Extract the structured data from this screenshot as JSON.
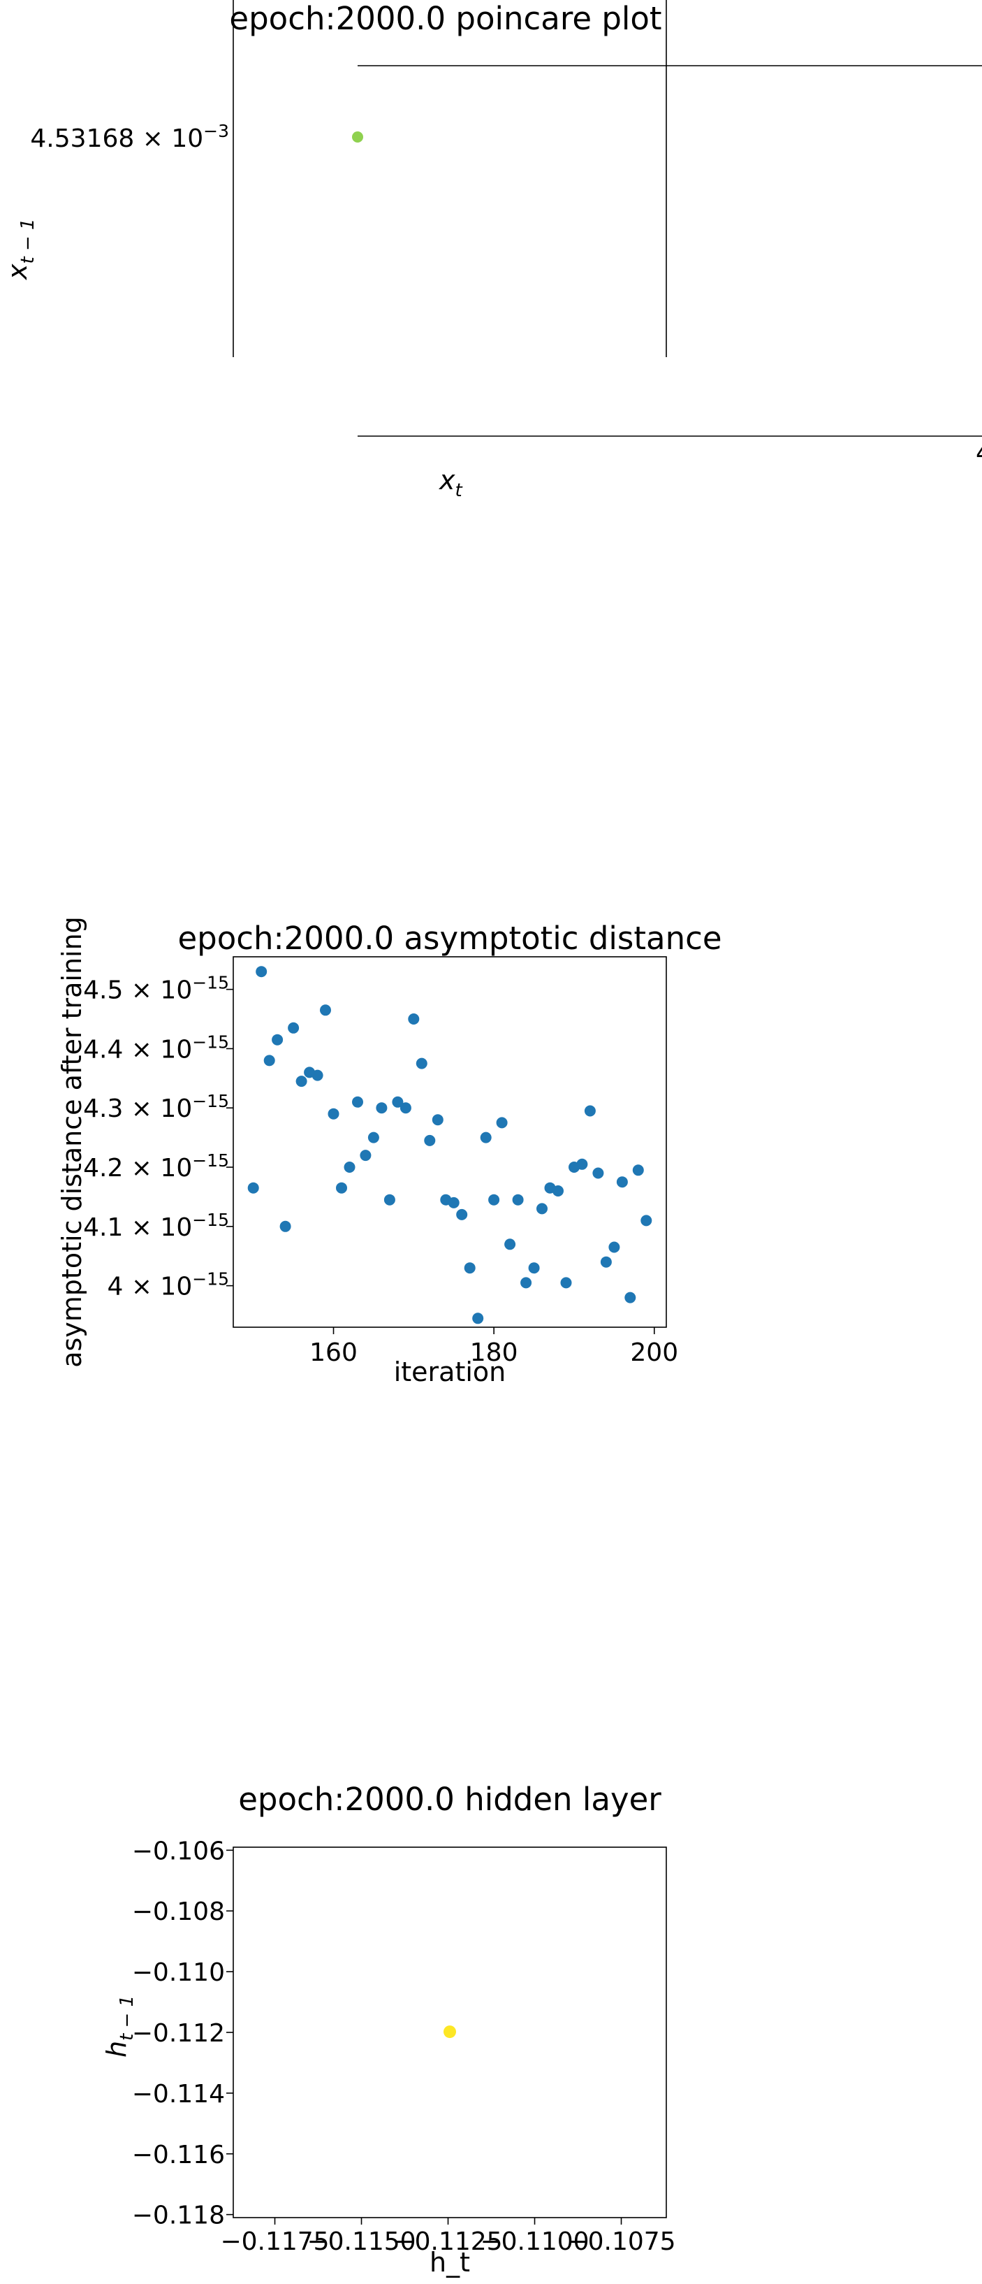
{
  "colors": {
    "axis": "#000000",
    "series_blue": "#1f77b4",
    "poincare_point": "#8fd14f",
    "hidden_point": "#fde725",
    "background": "#ffffff"
  },
  "chart_data": [
    {
      "type": "scatter",
      "title": "epoch:2000.0 poincare plot",
      "xlabel": "x_t",
      "ylabel": "x_{t-1}",
      "y_tick_labels": [
        "4.53168 × 10^-3"
      ],
      "x_tick_labels_partial": [
        "4"
      ],
      "points": [
        {
          "x": 0.00453168,
          "y": 0.00453168
        }
      ],
      "grid": false,
      "note_cropped": true
    },
    {
      "type": "scatter",
      "title": "epoch:2000.0 asymptotic distance",
      "xlabel": "iteration",
      "ylabel": "asymptotic distance after training",
      "xlim": [
        147.5,
        201.5
      ],
      "ylim": [
        3.93e-15,
        4.555e-15
      ],
      "x_ticks": [
        160,
        180,
        200
      ],
      "y_ticks": [
        4e-15,
        4.1e-15,
        4.2e-15,
        4.3e-15,
        4.4e-15,
        4.5e-15
      ],
      "y_tick_mantissas": [
        "4",
        "4.1",
        "4.2",
        "4.3",
        "4.4",
        "4.5"
      ],
      "y_tick_exponent": "-15",
      "grid": false,
      "series": [
        {
          "x": [
            150,
            151,
            152,
            153,
            154,
            155,
            156,
            157,
            158,
            159,
            160,
            161,
            162,
            163,
            164,
            165,
            166,
            167,
            168,
            169,
            170,
            171,
            172,
            173,
            174,
            175,
            176,
            177,
            178,
            179,
            180,
            181,
            182,
            183,
            184,
            185,
            186,
            187,
            188,
            189,
            190,
            191,
            192,
            193,
            194,
            195,
            196,
            197,
            198,
            199
          ],
          "y": [
            4.165e-15,
            4.53e-15,
            4.38e-15,
            4.415e-15,
            4.1e-15,
            4.435e-15,
            4.345e-15,
            4.36e-15,
            4.355e-15,
            4.465e-15,
            4.29e-15,
            4.165e-15,
            4.2e-15,
            4.31e-15,
            4.22e-15,
            4.25e-15,
            4.3e-15,
            4.145e-15,
            4.31e-15,
            4.3e-15,
            4.45e-15,
            4.375e-15,
            4.245e-15,
            4.28e-15,
            4.145e-15,
            4.14e-15,
            4.12e-15,
            4.03e-15,
            3.945e-15,
            4.25e-15,
            4.145e-15,
            4.275e-15,
            4.07e-15,
            4.145e-15,
            4.005e-15,
            4.03e-15,
            4.13e-15,
            4.165e-15,
            4.16e-15,
            4.005e-15,
            4.2e-15,
            4.205e-15,
            4.295e-15,
            4.19e-15,
            4.04e-15,
            4.065e-15,
            4.175e-15,
            3.98e-15,
            4.195e-15,
            4.11e-15
          ]
        }
      ]
    },
    {
      "type": "scatter",
      "title": "epoch:2000.0 hidden layer",
      "xlabel": "h_t",
      "ylabel": "h_{t-1}",
      "xlim": [
        -0.1187,
        -0.1062
      ],
      "ylim": [
        -0.1181,
        -0.1059
      ],
      "x_tick_labels": [
        "−0.1175",
        "−0.1150",
        "−0.1125",
        "−0.1100",
        "−0.1075"
      ],
      "x_tick_values": [
        -0.1175,
        -0.115,
        -0.1125,
        -0.11,
        -0.1075
      ],
      "y_tick_labels": [
        "−0.106",
        "−0.108",
        "−0.110",
        "−0.112",
        "−0.114",
        "−0.116",
        "−0.118"
      ],
      "y_tick_values": [
        -0.106,
        -0.108,
        -0.11,
        -0.112,
        -0.114,
        -0.116,
        -0.118
      ],
      "points": [
        {
          "x": -0.11245,
          "y": -0.11198
        }
      ],
      "grid": false
    }
  ]
}
